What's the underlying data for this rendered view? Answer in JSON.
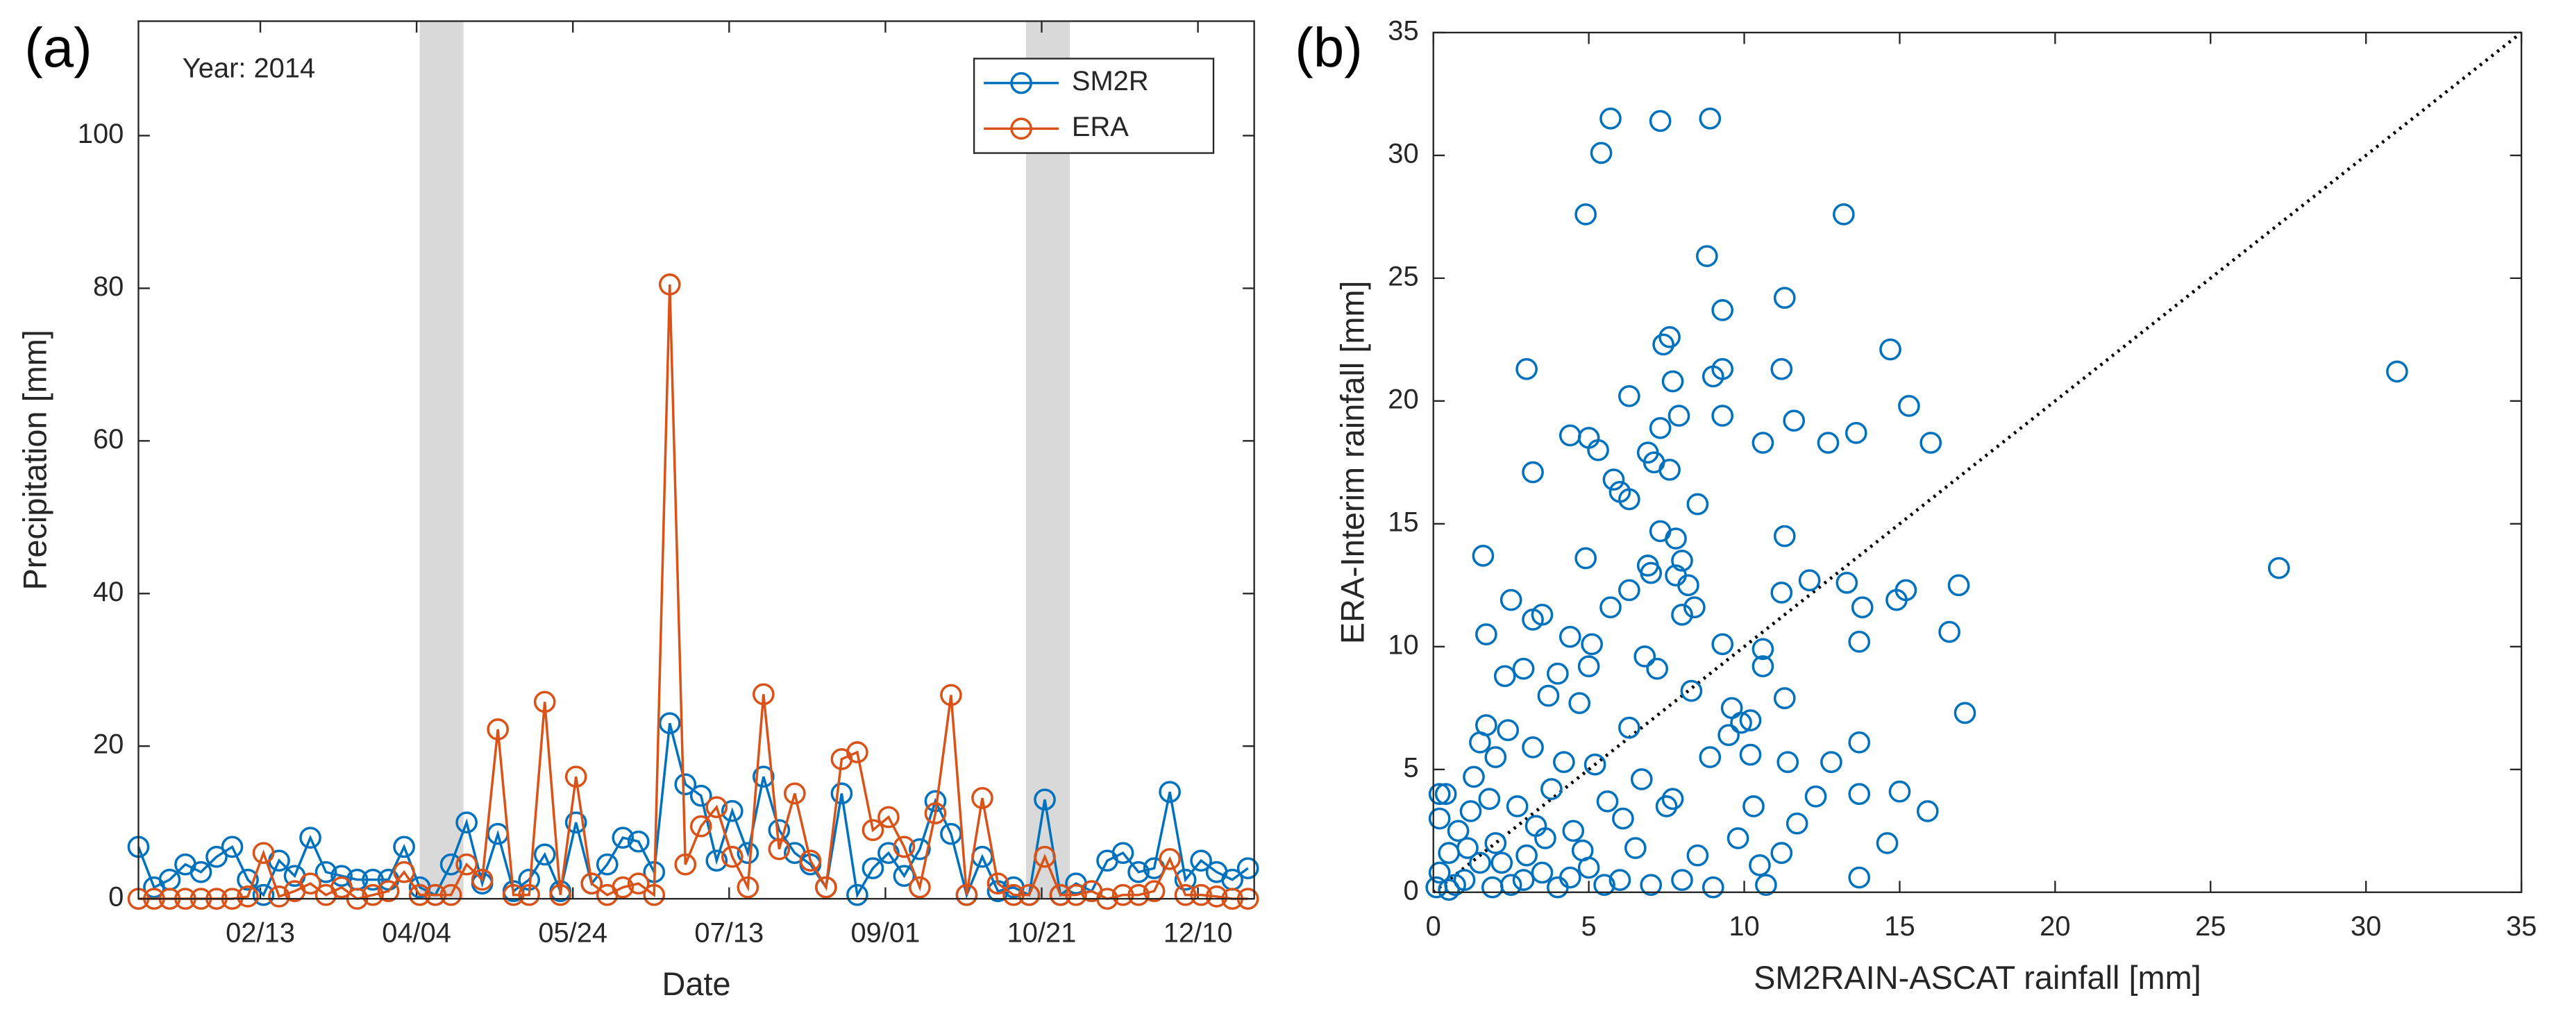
{
  "chart_data": [
    {
      "type": "line",
      "panel_label": "(a)",
      "annotation": "Year: 2014",
      "xlabel": "Date",
      "ylabel": "Precipitation [mm]",
      "x": [
        "01/05",
        "01/10",
        "01/15",
        "01/20",
        "01/25",
        "01/30",
        "02/04",
        "02/09",
        "02/14",
        "02/19",
        "02/24",
        "03/01",
        "03/06",
        "03/11",
        "03/16",
        "03/21",
        "03/26",
        "03/31",
        "04/05",
        "04/10",
        "04/15",
        "04/20",
        "04/25",
        "04/30",
        "05/05",
        "05/10",
        "05/15",
        "05/20",
        "05/25",
        "05/30",
        "06/04",
        "06/09",
        "06/14",
        "06/19",
        "06/24",
        "06/29",
        "07/04",
        "07/09",
        "07/14",
        "07/19",
        "07/24",
        "07/29",
        "08/03",
        "08/08",
        "08/13",
        "08/18",
        "08/23",
        "08/28",
        "09/02",
        "09/07",
        "09/12",
        "09/17",
        "09/22",
        "09/27",
        "10/02",
        "10/07",
        "10/12",
        "10/17",
        "10/22",
        "10/27",
        "11/01",
        "11/06",
        "11/11",
        "11/16",
        "11/21",
        "11/26",
        "12/01",
        "12/06",
        "12/11",
        "12/16",
        "12/21",
        "12/26"
      ],
      "series": [
        {
          "name": "SM2R",
          "color": "#0072bd",
          "values": [
            6.8,
            1.5,
            2.5,
            4.5,
            3.5,
            5.5,
            6.8,
            2.5,
            0.5,
            5,
            3,
            8,
            3.5,
            3,
            2.5,
            2.5,
            2.5,
            6.8,
            1.5,
            0.5,
            4.5,
            10,
            2,
            8.5,
            1,
            2.5,
            5.8,
            1,
            10,
            2,
            4.5,
            8,
            7.5,
            3.5,
            23,
            15,
            13.5,
            5,
            11.5,
            6,
            16,
            9,
            6,
            4.5,
            1.5,
            13.8,
            0.5,
            4,
            6,
            3,
            6.5,
            12.8,
            8.5,
            0.5,
            5.5,
            1,
            1.5,
            0.5,
            13,
            0.5,
            2,
            1,
            5,
            6,
            3.5,
            4,
            14,
            2.5,
            5,
            3.5,
            2.5,
            4
          ]
        },
        {
          "name": "ERA",
          "color": "#d95319",
          "values": [
            0,
            0,
            0,
            0,
            0,
            0,
            0,
            0.3,
            6,
            0.3,
            1,
            2,
            0.5,
            1.5,
            0,
            0.5,
            1,
            3.5,
            0.5,
            0.5,
            0.5,
            4.5,
            2.5,
            22.2,
            0.5,
            0.5,
            25.8,
            0.5,
            16,
            2,
            0.5,
            1.5,
            2,
            0.5,
            80.5,
            4.5,
            9.5,
            12,
            5.5,
            1.5,
            26.8,
            6.5,
            13.8,
            5,
            1.5,
            18.3,
            19.2,
            9,
            10.7,
            6.8,
            1.5,
            11.2,
            26.7,
            0.5,
            13.2,
            2,
            0.5,
            0.5,
            5.5,
            0.5,
            0.5,
            1,
            0,
            0.5,
            0.5,
            1,
            5.2,
            0.5,
            0.5,
            0.3,
            0,
            0
          ]
        }
      ],
      "shaded_regions": [
        [
          "04/05",
          "04/19"
        ],
        [
          "10/16",
          "10/30"
        ]
      ],
      "xlim": [
        "01/05",
        "12/28"
      ],
      "xticks": [
        "02/13",
        "04/04",
        "05/24",
        "07/13",
        "09/01",
        "10/21",
        "12/10"
      ],
      "ylim": [
        0,
        115
      ],
      "yticks": [
        0,
        20,
        40,
        60,
        80,
        100
      ],
      "legend": "northeast"
    },
    {
      "type": "scatter",
      "panel_label": "(b)",
      "xlabel": "SM2RAIN-ASCAT rainfall [mm]",
      "ylabel": "ERA-Interim rainfall [mm]",
      "color": "#0072bd",
      "x": [
        5.7,
        7.3,
        8.9,
        5.4,
        4.9,
        13.2,
        8.8,
        11.3,
        9.3,
        7.6,
        7.4,
        14.7,
        9.3,
        9.0,
        11.2,
        3.0,
        7.7,
        6.3,
        15.3,
        9.3,
        11.6,
        7.9,
        7.3,
        4.4,
        5.0,
        10.6,
        12.7,
        13.6,
        16.0,
        5.3,
        6.9,
        7.1,
        7.6,
        3.2,
        5.8,
        6.0,
        6.3,
        8.5,
        31.0,
        27.2,
        7.3,
        11.3,
        16.9,
        1.6,
        7.8,
        8.0,
        6.9,
        7.0,
        4.9,
        7.8,
        12.1,
        13.3,
        15.2,
        6.3,
        11.2,
        8.2,
        2.5,
        5.7,
        3.5,
        3.2,
        8.4,
        8.0,
        13.8,
        14.9,
        10.6,
        13.7,
        16.6,
        17.1,
        4.4,
        5.1,
        1.7,
        6.8,
        7.2,
        10.6,
        9.3,
        4.0,
        2.9,
        5.0,
        9.9,
        9.6,
        3.7,
        4.7,
        2.3,
        8.3,
        11.3,
        10.2,
        12.8,
        13.7,
        15.0,
        15.9,
        13.7,
        14.6,
        13.7,
        12.3,
        11.7,
        11.2,
        10.3,
        10.5,
        9.8,
        10.7,
        1.7,
        1.5,
        2.4,
        3.2,
        2.0,
        1.3,
        0.2,
        0.4,
        0.2,
        0.8,
        0.5,
        0.2,
        0.1,
        0.5,
        1.0,
        1.5,
        2.0,
        2.5,
        3.0,
        3.5,
        4.0,
        4.5,
        5.0,
        5.5,
        6.0,
        6.5,
        7.0,
        7.5,
        8.0,
        8.5,
        9.0,
        1.2,
        1.8,
        2.7,
        3.3,
        3.8,
        4.2,
        5.2,
        6.3,
        6.7,
        7.7,
        8.9,
        9.5,
        10.2,
        11.4,
        6.1,
        5.6,
        4.8,
        2.2,
        3.6,
        1.1,
        2.9,
        4.4,
        0.7,
        1.9
      ],
      "values": [
        31.5,
        31.4,
        31.5,
        30.1,
        27.6,
        27.6,
        25.9,
        24.2,
        23.7,
        22.6,
        22.3,
        22.1,
        21.3,
        21.0,
        21.3,
        21.3,
        20.8,
        20.2,
        19.8,
        19.4,
        19.2,
        19.4,
        18.9,
        18.6,
        18.5,
        18.3,
        18.3,
        18.7,
        18.3,
        18.0,
        17.9,
        17.5,
        17.2,
        17.1,
        16.8,
        16.3,
        16.0,
        15.8,
        21.2,
        13.2,
        14.7,
        14.5,
        12.5,
        13.7,
        14.4,
        13.5,
        13.3,
        13.0,
        13.6,
        12.9,
        12.7,
        12.6,
        12.3,
        12.3,
        12.2,
        12.5,
        11.9,
        11.6,
        11.3,
        11.1,
        11.6,
        11.3,
        11.6,
        11.9,
        9.9,
        10.2,
        10.6,
        7.3,
        10.4,
        10.1,
        10.5,
        9.6,
        9.1,
        9.2,
        10.1,
        8.9,
        9.1,
        9.2,
        6.9,
        7.5,
        8.0,
        7.7,
        8.8,
        8.2,
        7.9,
        7.0,
        5.3,
        6.1,
        4.1,
        3.3,
        4.0,
        2.0,
        0.6,
        3.9,
        2.8,
        1.6,
        3.5,
        1.1,
        2.2,
        0.3,
        6.8,
        6.1,
        6.6,
        5.9,
        5.5,
        4.7,
        4.0,
        4.0,
        3.0,
        2.5,
        1.6,
        0.8,
        0.2,
        0.1,
        0.5,
        1.2,
        2.0,
        0.3,
        1.5,
        0.8,
        0.2,
        2.5,
        1.0,
        0.3,
        0.5,
        1.8,
        0.3,
        3.5,
        0.5,
        1.5,
        0.2,
        3.3,
        3.8,
        3.5,
        2.7,
        4.2,
        5.3,
        5.2,
        6.7,
        4.6,
        3.8,
        5.5,
        6.4,
        5.6,
        5.3,
        3.0,
        3.7,
        1.7,
        1.2,
        2.2,
        1.8,
        0.5,
        0.6,
        0.3,
        0.2
      ],
      "xlim": [
        0,
        35
      ],
      "xticks": [
        0,
        5,
        10,
        15,
        20,
        25,
        30,
        35
      ],
      "ylim": [
        0,
        35
      ],
      "yticks": [
        0,
        5,
        10,
        15,
        20,
        25,
        30,
        35
      ]
    }
  ]
}
